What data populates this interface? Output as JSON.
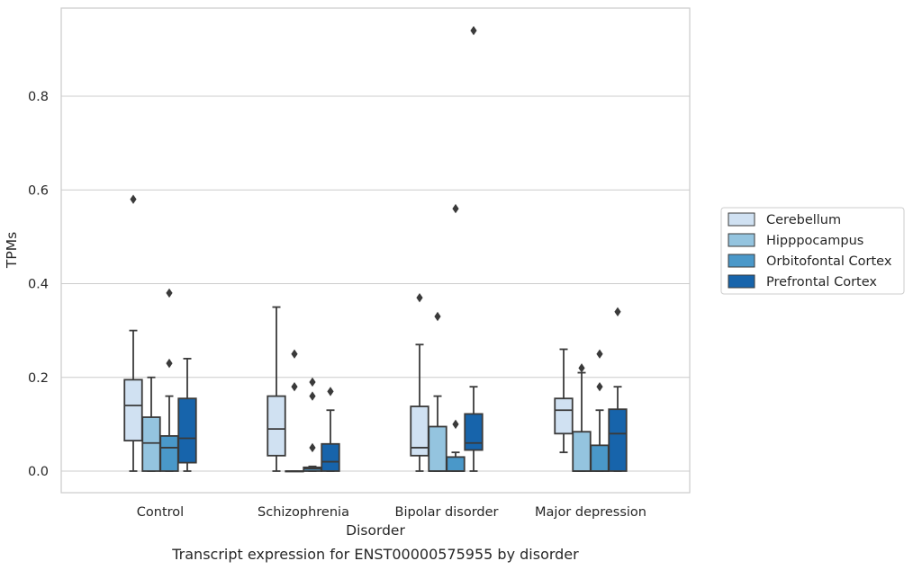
{
  "chart_data": {
    "type": "box",
    "title": "",
    "caption": "Transcript expression for ENST00000575955 by disorder",
    "xlabel": "Disorder",
    "ylabel": "TPMs",
    "ylim": [
      -0.045,
      0.99
    ],
    "yticks": [
      {
        "value": 0.0,
        "label": "0.0"
      },
      {
        "value": 0.2,
        "label": "0.2"
      },
      {
        "value": 0.4,
        "label": "0.4"
      },
      {
        "value": 0.6,
        "label": "0.6"
      },
      {
        "value": 0.8,
        "label": "0.8"
      }
    ],
    "grid": "horizontal",
    "legend_position": "right",
    "categories": [
      "Control",
      "Schizophrenia",
      "Bipolar disorder",
      "Major depression"
    ],
    "series": [
      {
        "name": "Cerebellum",
        "color": "#d0e1f2",
        "boxes": [
          {
            "min": 0.0,
            "q1": 0.065,
            "median": 0.14,
            "q3": 0.195,
            "max": 0.3,
            "outliers": [
              0.58
            ]
          },
          {
            "min": 0.0,
            "q1": 0.033,
            "median": 0.09,
            "q3": 0.16,
            "max": 0.35,
            "outliers": []
          },
          {
            "min": 0.0,
            "q1": 0.033,
            "median": 0.05,
            "q3": 0.138,
            "max": 0.27,
            "outliers": [
              0.37
            ]
          },
          {
            "min": 0.04,
            "q1": 0.08,
            "median": 0.13,
            "q3": 0.155,
            "max": 0.26,
            "outliers": []
          }
        ]
      },
      {
        "name": "Hipppocampus",
        "color": "#94c4df",
        "boxes": [
          {
            "min": 0.0,
            "q1": 0.0,
            "median": 0.06,
            "q3": 0.115,
            "max": 0.2,
            "outliers": []
          },
          {
            "min": 0.0,
            "q1": 0.0,
            "median": 0.0,
            "q3": 0.0,
            "max": 0.0,
            "outliers": [
              0.25,
              0.18
            ]
          },
          {
            "min": 0.0,
            "q1": 0.0,
            "median": 0.0,
            "q3": 0.095,
            "max": 0.16,
            "outliers": [
              0.33
            ]
          },
          {
            "min": 0.0,
            "q1": 0.0,
            "median": 0.0,
            "q3": 0.084,
            "max": 0.21,
            "outliers": [
              0.22
            ]
          }
        ]
      },
      {
        "name": "Orbitofontal Cortex",
        "color": "#4a98c9",
        "boxes": [
          {
            "min": 0.0,
            "q1": 0.0,
            "median": 0.05,
            "q3": 0.075,
            "max": 0.16,
            "outliers": [
              0.38,
              0.23
            ]
          },
          {
            "min": 0.0,
            "q1": 0.0,
            "median": 0.005,
            "q3": 0.008,
            "max": 0.01,
            "outliers": [
              0.19,
              0.16,
              0.05
            ]
          },
          {
            "min": 0.0,
            "q1": 0.0,
            "median": 0.0,
            "q3": 0.03,
            "max": 0.04,
            "outliers": [
              0.56,
              0.1
            ]
          },
          {
            "min": 0.0,
            "q1": 0.0,
            "median": 0.0,
            "q3": 0.055,
            "max": 0.13,
            "outliers": [
              0.25,
              0.18
            ]
          }
        ]
      },
      {
        "name": "Prefrontal Cortex",
        "color": "#1764ab",
        "boxes": [
          {
            "min": 0.0,
            "q1": 0.018,
            "median": 0.07,
            "q3": 0.155,
            "max": 0.24,
            "outliers": []
          },
          {
            "min": 0.0,
            "q1": 0.0,
            "median": 0.02,
            "q3": 0.058,
            "max": 0.13,
            "outliers": [
              0.17
            ]
          },
          {
            "min": 0.0,
            "q1": 0.045,
            "median": 0.06,
            "q3": 0.122,
            "max": 0.18,
            "outliers": [
              0.94
            ]
          },
          {
            "min": 0.0,
            "q1": 0.0,
            "median": 0.08,
            "q3": 0.132,
            "max": 0.18,
            "outliers": [
              0.34
            ]
          }
        ]
      }
    ]
  }
}
